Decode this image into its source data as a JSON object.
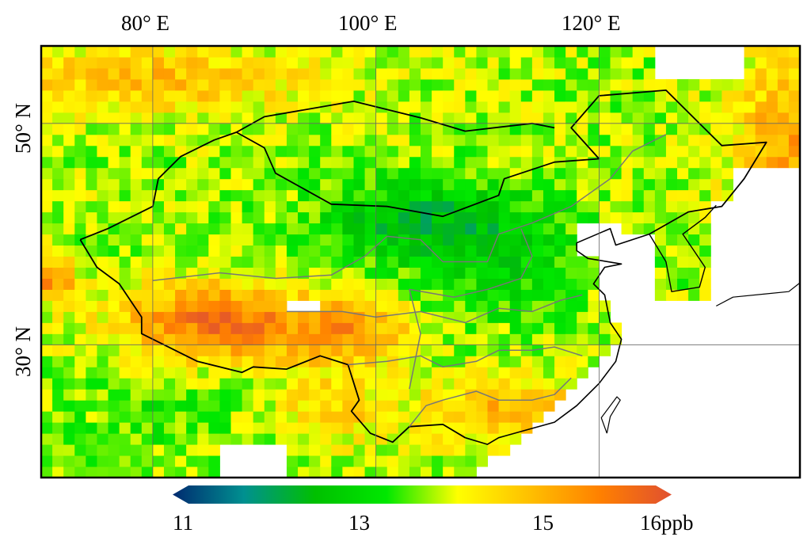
{
  "map": {
    "lon_range": [
      70,
      138
    ],
    "lat_range": [
      18,
      57
    ],
    "grid": true,
    "lon_labels": [
      {
        "lon": 80,
        "text": "80° E"
      },
      {
        "lon": 100,
        "text": "100° E"
      },
      {
        "lon": 120,
        "text": "120° E"
      }
    ],
    "lat_labels": [
      {
        "lat": 50,
        "text": "50° N"
      },
      {
        "lat": 30,
        "text": "30° N"
      }
    ],
    "cell_size_deg": 1
  },
  "colorbar": {
    "min": 11,
    "max": 16,
    "ticks": [
      {
        "value": 11,
        "text": "11"
      },
      {
        "value": 13,
        "text": "13"
      },
      {
        "value": 15,
        "text": "15"
      },
      {
        "value": 16,
        "text": "16ppb"
      }
    ],
    "colors": [
      "#002a70",
      "#009090",
      "#00c000",
      "#00e800",
      "#ffff00",
      "#ffc000",
      "#ff8000",
      "#e05030"
    ],
    "extend": "both"
  }
}
